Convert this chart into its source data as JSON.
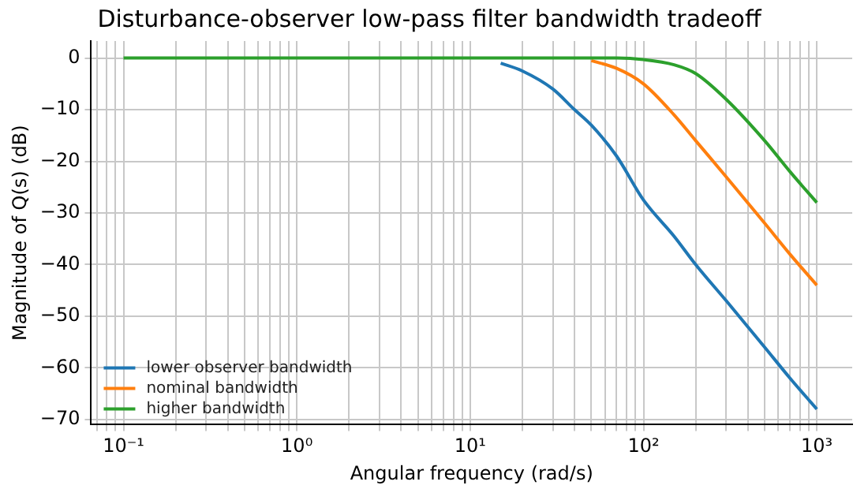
{
  "chart_data": {
    "type": "line",
    "title": "Disturbance-observer low-pass filter bandwidth tradeoff",
    "xlabel": "Angular frequency (rad/s)",
    "ylabel": "Magnitude of Q(s) (dB)",
    "log": "x",
    "grid": true,
    "legend": "bottom left",
    "marker": "none",
    "line_style": "solid",
    "x": [
      0.1,
      1,
      5,
      10,
      15,
      20,
      30,
      40,
      50,
      70,
      100,
      150,
      200,
      300,
      500,
      700,
      1000
    ],
    "series": [
      {
        "name": "lower observer bandwidth",
        "color": "#1f77b4",
        "values": [
          null,
          null,
          null,
          null,
          -1,
          -2.5,
          -6,
          -10,
          -13,
          -19,
          -27.5,
          -34.5,
          -40,
          -47,
          -56,
          -62,
          -68
        ]
      },
      {
        "name": "nominal bandwidth",
        "color": "#ff7f0e",
        "values": [
          null,
          null,
          null,
          null,
          null,
          null,
          null,
          null,
          -0.5,
          -2,
          -5,
          -11,
          -16,
          -23,
          -32,
          -38,
          -44
        ]
      },
      {
        "name": "higher bandwidth",
        "color": "#2ca02c",
        "values": [
          0,
          0,
          0,
          0,
          0,
          0,
          0,
          0,
          0,
          0,
          -0.3,
          -1.3,
          -3,
          -8,
          -16,
          -22,
          -28
        ]
      }
    ],
    "xlim": [
      0.065,
      1600
    ],
    "ylim": [
      -71,
      3.3
    ],
    "xticks": [
      {
        "value": 0.07,
        "label": null
      },
      {
        "value": 0.08,
        "label": null
      },
      {
        "value": 0.09,
        "label": null
      },
      {
        "value": 0.1,
        "label": "10⁻¹"
      },
      {
        "value": 0.2,
        "label": null
      },
      {
        "value": 0.3,
        "label": null
      },
      {
        "value": 0.4,
        "label": null
      },
      {
        "value": 0.5,
        "label": null
      },
      {
        "value": 0.6,
        "label": null
      },
      {
        "value": 0.7,
        "label": null
      },
      {
        "value": 0.8,
        "label": null
      },
      {
        "value": 0.9,
        "label": null
      },
      {
        "value": 1,
        "label": "10⁰"
      },
      {
        "value": 2,
        "label": null
      },
      {
        "value": 3,
        "label": null
      },
      {
        "value": 4,
        "label": null
      },
      {
        "value": 5,
        "label": null
      },
      {
        "value": 6,
        "label": null
      },
      {
        "value": 7,
        "label": null
      },
      {
        "value": 8,
        "label": null
      },
      {
        "value": 9,
        "label": null
      },
      {
        "value": 10,
        "label": "10¹"
      },
      {
        "value": 20,
        "label": null
      },
      {
        "value": 30,
        "label": null
      },
      {
        "value": 40,
        "label": null
      },
      {
        "value": 50,
        "label": null
      },
      {
        "value": 60,
        "label": null
      },
      {
        "value": 70,
        "label": null
      },
      {
        "value": 80,
        "label": null
      },
      {
        "value": 90,
        "label": null
      },
      {
        "value": 100,
        "label": "10²"
      },
      {
        "value": 200,
        "label": null
      },
      {
        "value": 300,
        "label": null
      },
      {
        "value": 400,
        "label": null
      },
      {
        "value": 500,
        "label": null
      },
      {
        "value": 600,
        "label": null
      },
      {
        "value": 700,
        "label": null
      },
      {
        "value": 800,
        "label": null
      },
      {
        "value": 900,
        "label": null
      },
      {
        "value": 1000,
        "label": "10³"
      }
    ],
    "yticks": [
      0,
      -10,
      -20,
      -30,
      -40,
      -50,
      -60,
      -70
    ]
  }
}
